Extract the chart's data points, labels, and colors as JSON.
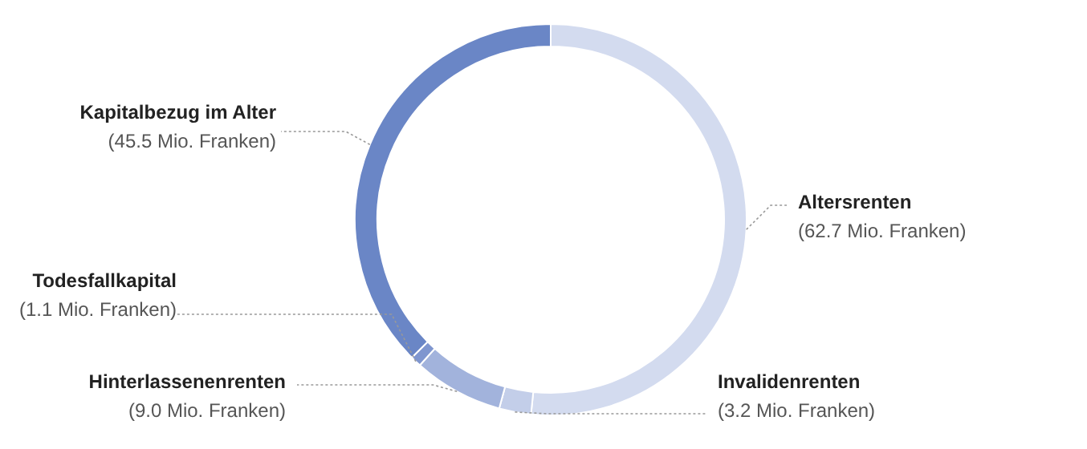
{
  "chart_data": {
    "type": "donut",
    "categories": [
      "Altersrenten",
      "Invalidenrenten",
      "Hinterlassenenrenten",
      "Todesfallkapital",
      "Kapitalbezug im Alter"
    ],
    "values": [
      62.7,
      3.2,
      9.0,
      1.1,
      45.5
    ],
    "value_labels": [
      "(62.7 Mio. Franken)",
      "(3.2 Mio. Franken)",
      "(9.0 Mio. Franken)",
      "(1.1 Mio. Franken)",
      "(45.5 Mio. Franken)"
    ],
    "colors": [
      "#d3dbef",
      "#c3cee9",
      "#a2b3dc",
      "#7f96cf",
      "#6a86c6"
    ]
  }
}
